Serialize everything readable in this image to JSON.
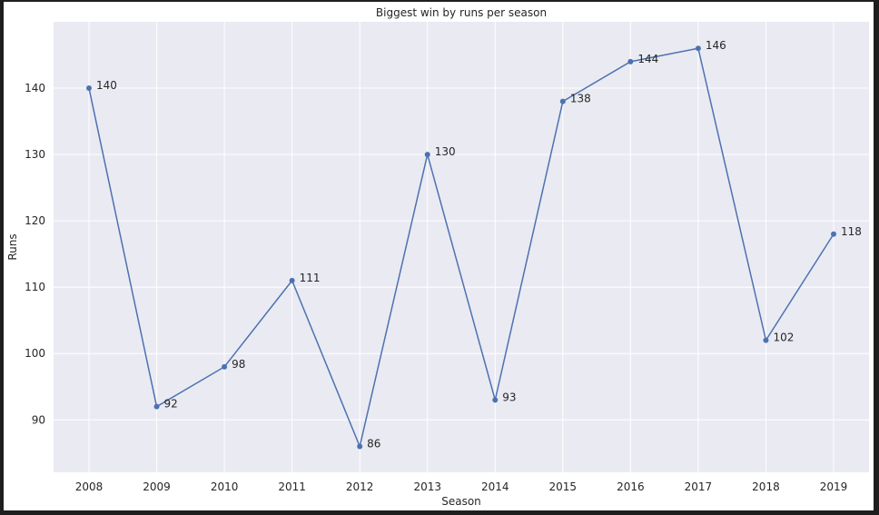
{
  "chart_data": {
    "type": "line",
    "title": "Biggest win by runs per season",
    "xlabel": "Season",
    "ylabel": "Runs",
    "categories": [
      "2008",
      "2009",
      "2010",
      "2011",
      "2012",
      "2013",
      "2014",
      "2015",
      "2016",
      "2017",
      "2018",
      "2019"
    ],
    "series": [
      {
        "values": [
          140,
          92,
          98,
          111,
          86,
          130,
          93,
          138,
          144,
          146,
          102,
          118
        ]
      }
    ],
    "ylim": [
      82.1,
      150
    ],
    "yticks": [
      90,
      100,
      110,
      120,
      130,
      140
    ],
    "grid": true,
    "line_color": "#4c72b0",
    "plot_background": "#eaeaf2",
    "grid_color": "#ffffff"
  }
}
